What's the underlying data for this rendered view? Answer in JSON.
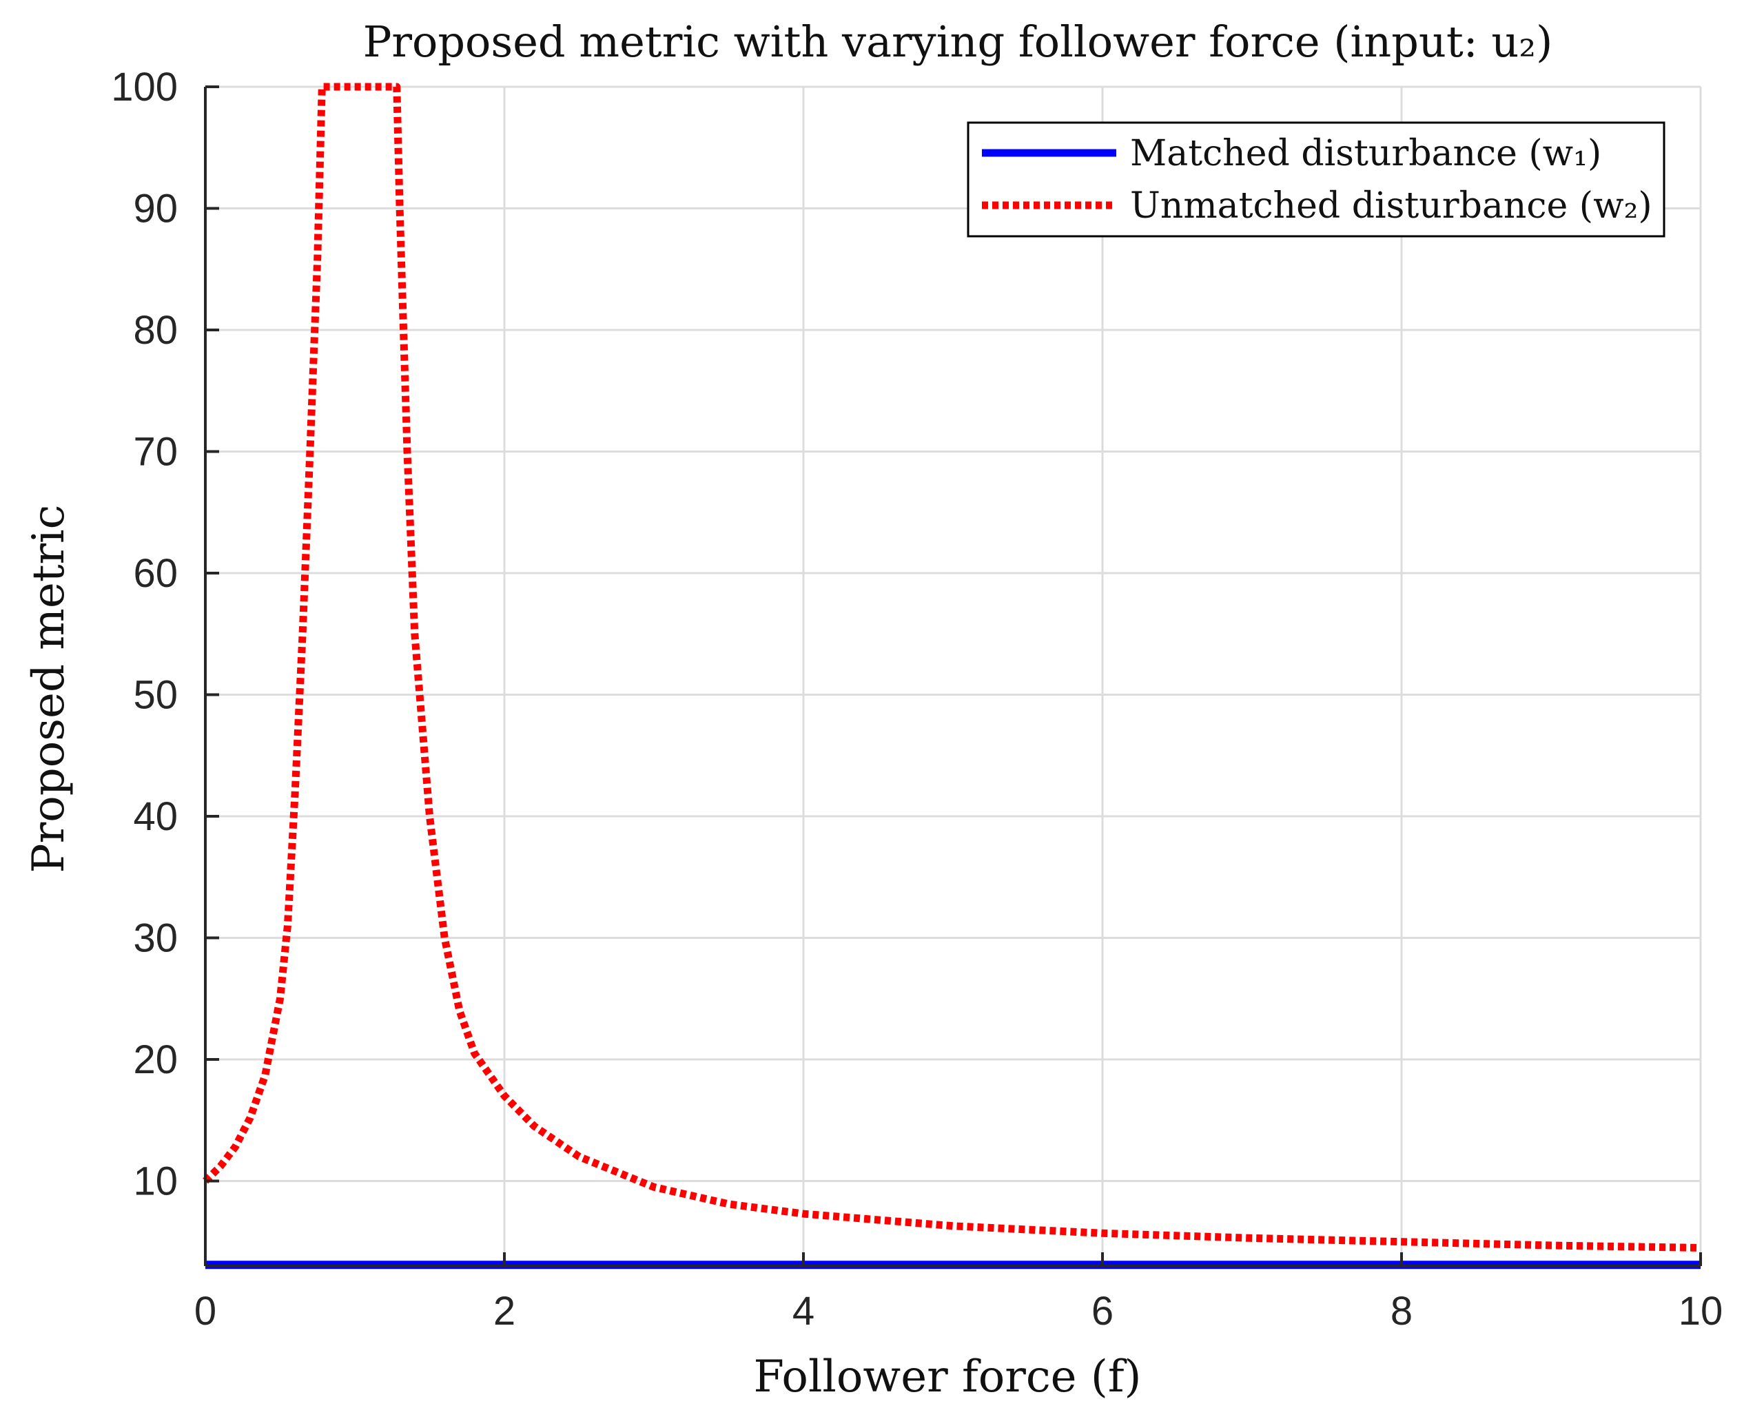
{
  "chart_data": {
    "type": "line",
    "title": "Proposed metric with varying follower force (input: u₂)",
    "xlabel": "Follower force (f)",
    "ylabel": "Proposed metric",
    "xlim": [
      0,
      10
    ],
    "ylim": [
      3,
      100
    ],
    "grid": true,
    "xticks": [
      0,
      2,
      4,
      6,
      8,
      10
    ],
    "xtick_labels": [
      "0",
      "2",
      "4",
      "6",
      "8",
      "10"
    ],
    "yticks": [
      10,
      20,
      30,
      40,
      50,
      60,
      70,
      80,
      90,
      100
    ],
    "ytick_labels": [
      "10",
      "20",
      "30",
      "40",
      "50",
      "60",
      "70",
      "80",
      "90",
      "100"
    ],
    "legend": {
      "position": "top-right"
    },
    "series": [
      {
        "name": "Matched disturbance (w₁)",
        "style": "solid",
        "color": "#0000ff",
        "x": [
          0,
          10
        ],
        "y": [
          3.1,
          3.1
        ]
      },
      {
        "name": "Unmatched disturbance (w₂)",
        "style": "dotted",
        "color": "#ff0000",
        "x": [
          0,
          0.1,
          0.2,
          0.3,
          0.4,
          0.5,
          0.55,
          0.6,
          0.65,
          0.7,
          0.75,
          0.78,
          1.28,
          1.3,
          1.35,
          1.4,
          1.5,
          1.6,
          1.7,
          1.8,
          2.0,
          2.2,
          2.5,
          3.0,
          3.5,
          4.0,
          5.0,
          6.0,
          7.0,
          8.0,
          9.0,
          10.0
        ],
        "y": [
          10,
          11.2,
          12.8,
          15.2,
          18.7,
          25,
          31,
          42,
          55,
          70,
          86,
          100,
          100,
          90,
          70,
          55,
          40,
          30,
          24,
          20.5,
          17,
          14.5,
          12,
          9.5,
          8.1,
          7.3,
          6.3,
          5.7,
          5.3,
          5.0,
          4.7,
          4.5
        ]
      }
    ]
  }
}
